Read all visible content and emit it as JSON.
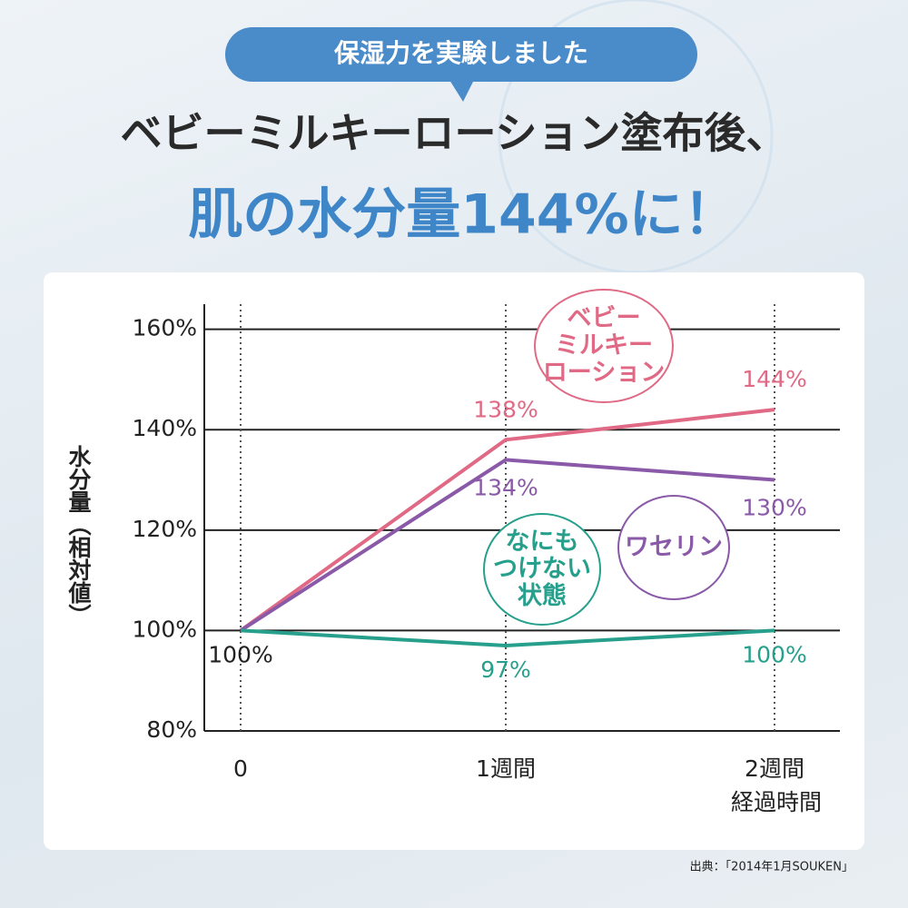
{
  "header": {
    "badge": "保湿力を実験しました",
    "line1": "ベビーミルキーローション塗布後、",
    "line2": "肌の水分量144%に！"
  },
  "chart_data": {
    "type": "line",
    "y_label": "水分量（相対値）",
    "x_label": "経過時間",
    "categories": [
      "0",
      "1週間",
      "2週間"
    ],
    "series": [
      {
        "name": "ベビー\nミルキー\nローション",
        "color": "#e06a85",
        "values": [
          100,
          138,
          144
        ],
        "value_labels": [
          null,
          "138%",
          "144%"
        ]
      },
      {
        "name": "ワセリン",
        "color": "#8a5aa8",
        "values": [
          100,
          134,
          130
        ],
        "value_labels": [
          null,
          "134%",
          "130%"
        ]
      },
      {
        "name": "なにも\nつけない\n状態",
        "color": "#26a08c",
        "values": [
          100,
          97,
          100
        ],
        "value_labels": [
          "100%",
          "97%",
          "100%"
        ]
      }
    ],
    "ylim": [
      80,
      165
    ],
    "yticks": [
      {
        "value": 80,
        "label": "80%"
      },
      {
        "value": 100,
        "label": "100%"
      },
      {
        "value": 120,
        "label": "120%"
      },
      {
        "value": 140,
        "label": "140%"
      },
      {
        "value": 160,
        "label": "160%"
      }
    ],
    "grid": true
  },
  "source": "出典：「2014年1月SOUKEN」"
}
